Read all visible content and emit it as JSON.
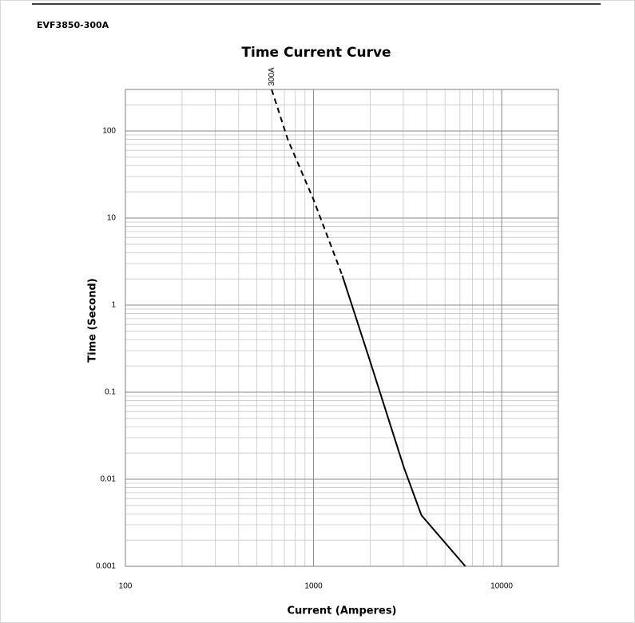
{
  "header": {
    "model": "EVF3850-300A"
  },
  "chart_data": {
    "type": "line",
    "title": "Time Current Curve",
    "x_label": "Current  (Amperes)",
    "y_label": "Time (Second)",
    "annotations": [
      {
        "text": "300A"
      }
    ],
    "log_x": true,
    "log_y": true,
    "grid": true,
    "xlim": [
      100,
      20000
    ],
    "ylim": [
      0.001,
      300
    ],
    "xticks": [
      100,
      1000,
      10000
    ],
    "yticks": [
      0.001,
      0.01,
      0.1,
      1,
      10,
      100
    ],
    "series": [
      {
        "color": "#000000",
        "line_style": "dashed",
        "x": [
          599,
          731,
          1000,
          1423
        ],
        "values": [
          300,
          79,
          16.3,
          2.18
        ]
      },
      {
        "color": "#000000",
        "line_style": "solid",
        "x": [
          1423,
          1983,
          3020,
          3745,
          6412
        ],
        "values": [
          2.18,
          0.238,
          0.0137,
          0.00386,
          0.001
        ]
      }
    ]
  }
}
